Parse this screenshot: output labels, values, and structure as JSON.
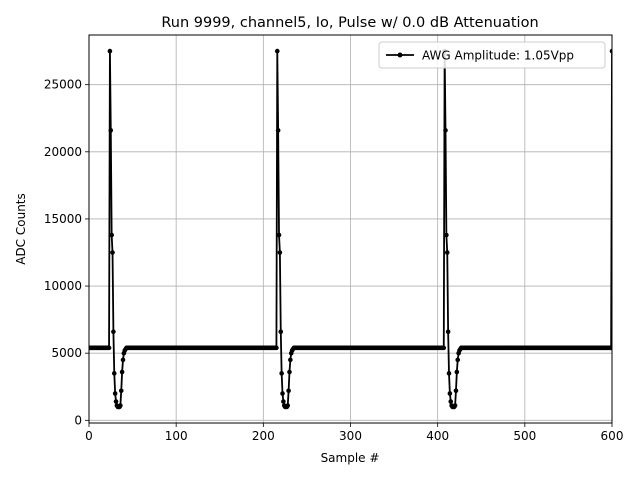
{
  "chart_data": {
    "type": "line",
    "title": "Run 9999, channel5, Io, Pulse w/ 0.0 dB Attenuation",
    "xlabel": "Sample #",
    "ylabel": "ADC Counts",
    "xlim": [
      0,
      600
    ],
    "ylim": [
      -200,
      28700
    ],
    "grid": true,
    "legend_position": "top-right",
    "x_ticks": [
      0,
      100,
      200,
      300,
      400,
      500,
      600
    ],
    "y_ticks": [
      0,
      5000,
      10000,
      15000,
      20000,
      25000
    ],
    "series": [
      {
        "name": "AWG Amplitude: 1.05Vpp",
        "color": "#000000",
        "marker": "circle",
        "baseline": 5400,
        "pulse_starts": [
          24,
          216,
          408,
          600
        ],
        "pulse_shape": [
          27500,
          21600,
          13800,
          12500,
          6600,
          3500,
          2000,
          1400,
          1100,
          1000,
          1000,
          1000,
          1100,
          2200,
          3600,
          4500,
          5000,
          5200,
          5300,
          5400
        ],
        "period": 192,
        "x_start": 0,
        "x_end": 600
      }
    ]
  }
}
